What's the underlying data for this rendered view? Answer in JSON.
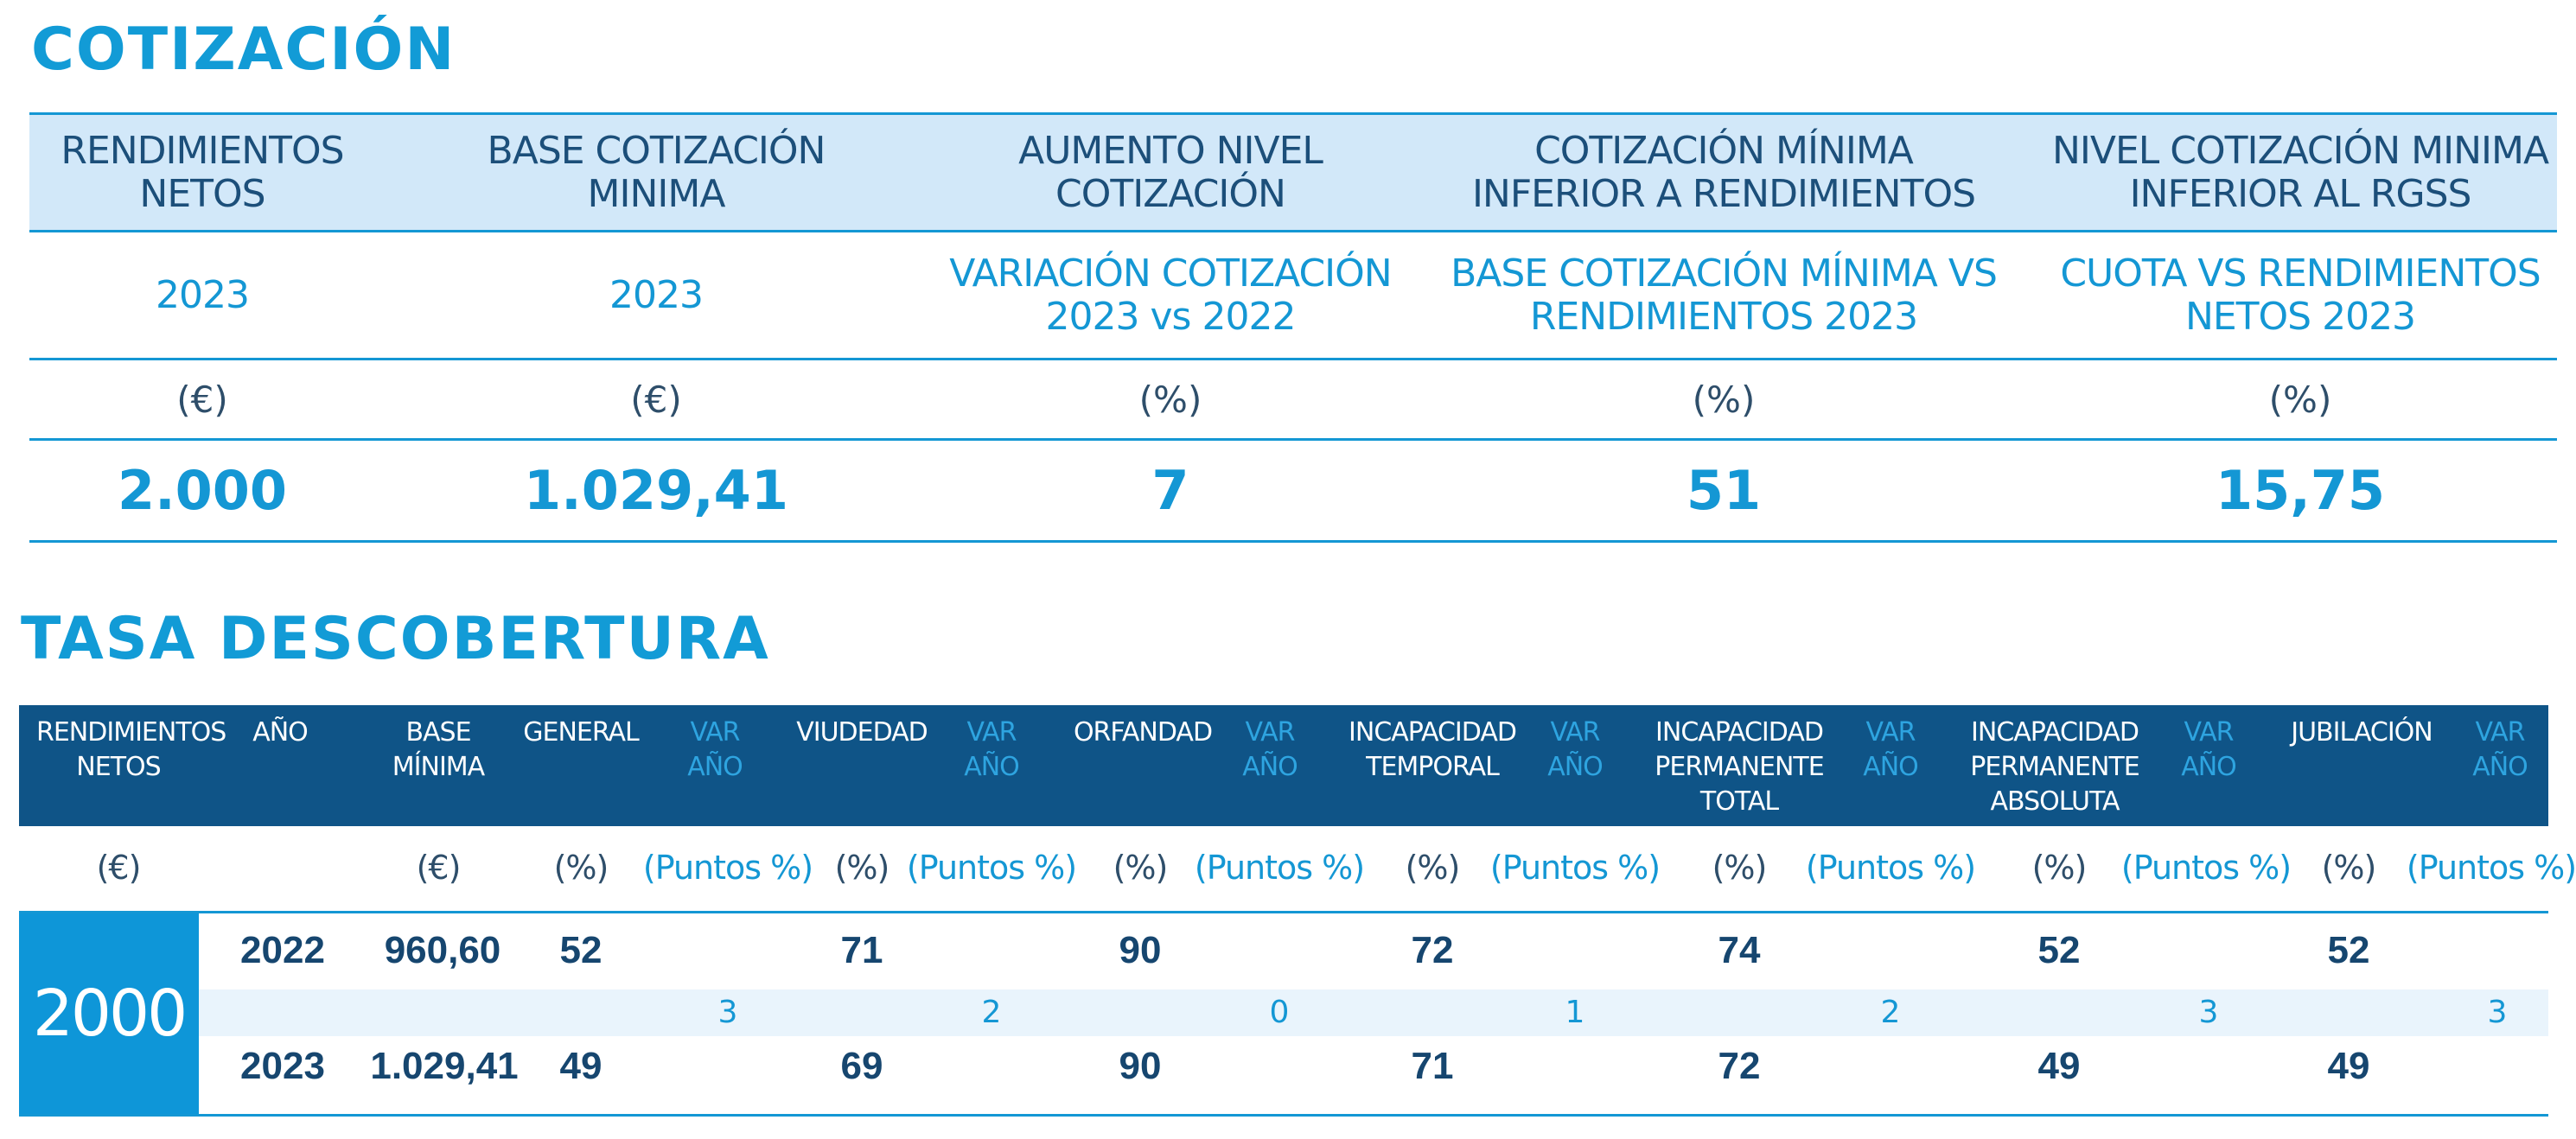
{
  "cotizacion": {
    "title": "COTIZACIÓN",
    "headers": [
      "RENDIMIENTOS NETOS",
      "BASE COTIZACIÓN MINIMA",
      "AUMENTO NIVEL COTIZACIÓN",
      "COTIZACIÓN MÍNIMA INFERIOR A RENDIMIENTOS",
      "NIVEL COTIZACIÓN MINIMA INFERIOR AL RGSS"
    ],
    "headers_l1": [
      "RENDIMIENTOS",
      "BASE COTIZACIÓN",
      "AUMENTO NIVEL",
      "COTIZACIÓN MÍNIMA",
      "NIVEL COTIZACIÓN MINIMA"
    ],
    "headers_l2": [
      "NETOS",
      "MINIMA",
      "COTIZACIÓN",
      "INFERIOR A RENDIMIENTOS",
      "INFERIOR AL RGSS"
    ],
    "sub_l1": [
      "2023",
      "2023",
      "VARIACIÓN COTIZACIÓN",
      "BASE COTIZACIÓN MÍNIMA VS",
      "CUOTA VS RENDIMIENTOS"
    ],
    "sub_l2": [
      "",
      "",
      "2023 vs 2022",
      "RENDIMIENTOS 2023",
      "NETOS 2023"
    ],
    "units": [
      "(€)",
      "(€)",
      "(%)",
      "(%)",
      "(%)"
    ],
    "values": [
      "2.000",
      "1.029,41",
      "7",
      "51",
      "15,75"
    ]
  },
  "tasa": {
    "title": "TASA DESCOBERTURA",
    "headers": {
      "rend_l1": "RENDIMIENTOS",
      "rend_l2": "NETOS",
      "anio": "AÑO",
      "base_l1": "BASE",
      "base_l2": "MÍNIMA",
      "general": "GENERAL",
      "var_l1": "VAR",
      "var_l2": "AÑO",
      "viudedad": "VIUDEDAD",
      "orfandad": "ORFANDAD",
      "it_l1": "INCAPACIDAD",
      "it_l2": "TEMPORAL",
      "ipt_l1": "INCAPACIDAD",
      "ipt_l2": "PERMANENTE",
      "ipt_l3": "TOTAL",
      "ipa_l1": "INCAPACIDAD",
      "ipa_l2": "PERMANENTE",
      "ipa_l3": "ABSOLUTA",
      "jubilacion": "JUBILACIÓN"
    },
    "units": {
      "euro": "(€)",
      "pct": "(%)",
      "puntos": "(Puntos %)"
    },
    "rendimientos": "2000",
    "rows": [
      {
        "anio": "2022",
        "base": "960,60",
        "general": "52",
        "viudedad": "71",
        "orfandad": "90",
        "it": "72",
        "ipt": "74",
        "ipa": "52",
        "jubilacion": "52"
      },
      {
        "anio": "2023",
        "base": "1.029,41",
        "general": "49",
        "viudedad": "69",
        "orfandad": "90",
        "it": "71",
        "ipt": "72",
        "ipa": "49",
        "jubilacion": "49"
      }
    ],
    "variaciones": [
      "3",
      "2",
      "0",
      "1",
      "2",
      "3",
      "3"
    ]
  }
}
